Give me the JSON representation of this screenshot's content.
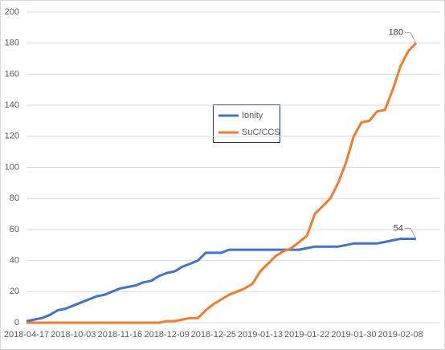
{
  "chart_data": {
    "type": "line",
    "categories": [
      "2018-04-17",
      null,
      null,
      null,
      null,
      null,
      "2018-10-03",
      null,
      null,
      null,
      null,
      null,
      "2018-11-16",
      null,
      null,
      null,
      null,
      null,
      "2018-12-09",
      null,
      null,
      null,
      null,
      null,
      "2018-12-25",
      null,
      null,
      null,
      null,
      null,
      "2019-01-13",
      null,
      null,
      null,
      null,
      null,
      "2019-01-22",
      null,
      null,
      null,
      null,
      null,
      "2019-01-30",
      null,
      null,
      null,
      null,
      null,
      "2019-02-08",
      null,
      null
    ],
    "series": [
      {
        "name": "Ionity",
        "color": "#4472c4",
        "values": [
          1,
          2,
          3,
          5,
          8,
          9,
          11,
          13,
          15,
          17,
          18,
          20,
          22,
          23,
          24,
          26,
          27,
          30,
          32,
          33,
          36,
          38,
          40,
          45,
          45,
          45,
          47,
          47,
          47,
          47,
          47,
          47,
          47,
          47,
          47,
          47,
          48,
          49,
          49,
          49,
          49,
          50,
          51,
          51,
          51,
          51,
          52,
          53,
          54,
          54,
          54
        ]
      },
      {
        "name": "SuC/CCS",
        "color": "#ed7d31",
        "values": [
          0,
          0,
          0,
          0,
          0,
          0,
          0,
          0,
          0,
          0,
          0,
          0,
          0,
          0,
          0,
          0,
          0,
          0,
          1,
          1,
          2,
          3,
          3,
          8,
          12,
          15,
          18,
          20,
          22,
          25,
          33,
          38,
          43,
          46,
          48,
          52,
          56,
          70,
          75,
          80,
          90,
          103,
          120,
          129,
          130,
          136,
          137,
          150,
          165,
          175,
          180
        ]
      }
    ],
    "ylim": [
      0,
      200
    ],
    "yticks": [
      0,
      20,
      40,
      60,
      80,
      100,
      120,
      140,
      160,
      180,
      200
    ],
    "grid": true
  }
}
